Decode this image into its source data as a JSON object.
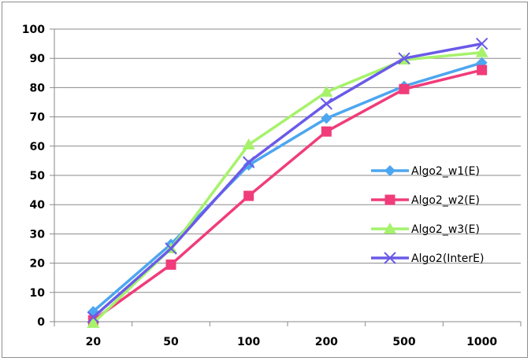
{
  "chart_data": {
    "type": "line",
    "title": "",
    "xlabel": "",
    "ylabel": "",
    "categories": [
      "20",
      "50",
      "100",
      "200",
      "500",
      "1000"
    ],
    "ylim": [
      0,
      100
    ],
    "yticks": [
      0,
      10,
      20,
      30,
      40,
      50,
      60,
      70,
      80,
      90,
      100
    ],
    "grid": true,
    "legend_position": "right",
    "series": [
      {
        "name": "Algo2_w1(E)",
        "marker": "diamond",
        "color": "#4da6f0",
        "values": [
          3.5,
          26.5,
          53.5,
          69.5,
          80.5,
          88.5
        ]
      },
      {
        "name": "Algo2_w2(E)",
        "marker": "square",
        "color": "#f03c7a",
        "values": [
          0.5,
          19.5,
          43,
          65,
          79.5,
          86
        ]
      },
      {
        "name": "Algo2_w3(E)",
        "marker": "triangle",
        "color": "#a6f26b",
        "values": [
          -0.5,
          25,
          60.5,
          78.5,
          89.5,
          92
        ]
      },
      {
        "name": "Algo2(InterE)",
        "marker": "x",
        "color": "#6a5ae8",
        "values": [
          1.5,
          25,
          54.5,
          74.5,
          90,
          95
        ]
      }
    ]
  }
}
